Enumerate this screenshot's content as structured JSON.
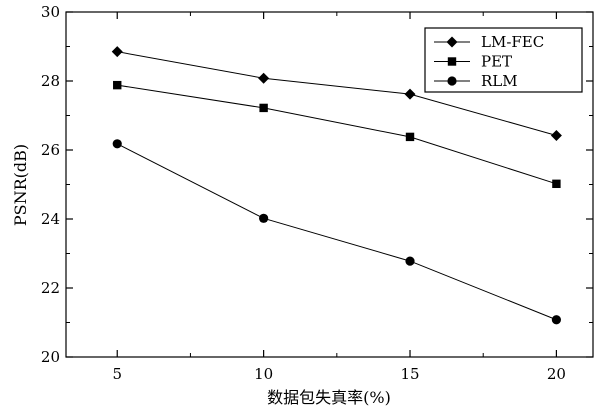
{
  "chart_data": {
    "type": "line",
    "xlabel": "数据包失真率(%)",
    "ylabel": "PSNR(dB)",
    "x": [
      5,
      10,
      15,
      20
    ],
    "xticks": [
      5,
      10,
      15,
      20
    ],
    "yticks": [
      20,
      22,
      24,
      26,
      28,
      30
    ],
    "xlim": [
      3.25,
      21.25
    ],
    "ylim": [
      20,
      30
    ],
    "grid": false,
    "legend_position": "top-right",
    "series": [
      {
        "name": "LM-FEC",
        "marker": "diamond",
        "values": [
          28.85,
          28.08,
          27.62,
          26.42
        ]
      },
      {
        "name": "PET",
        "marker": "square",
        "values": [
          27.88,
          27.22,
          26.38,
          25.02
        ]
      },
      {
        "name": "RLM",
        "marker": "circle",
        "values": [
          26.18,
          24.02,
          22.78,
          21.08
        ]
      }
    ]
  }
}
